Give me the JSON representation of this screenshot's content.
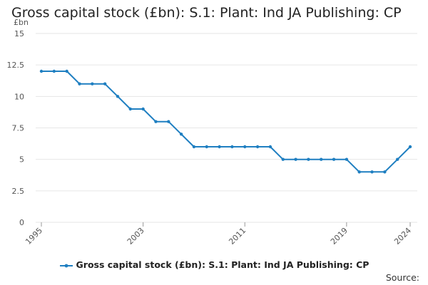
{
  "title": "Gross capital stock (£bn): S.1: Plant: Ind JA Publishing: CP",
  "source_label": "Source:",
  "colors": {
    "series": "#1f7fc1",
    "grid": "#e6e6e6",
    "axis_text": "#555555"
  },
  "chart_data": {
    "type": "line",
    "title": "Gross capital stock (£bn): S.1: Plant: Ind JA Publishing: CP",
    "ylabel": "£bn",
    "xlabel": "",
    "ylim": [
      0,
      15
    ],
    "xlim": [
      1995,
      2024
    ],
    "yticks": [
      "0",
      "2.5",
      "5",
      "7.5",
      "10",
      "12.5",
      "15"
    ],
    "xticks": [
      "1995",
      "2003",
      "2011",
      "2019",
      "2024"
    ],
    "grid": true,
    "legend_position": "bottom",
    "series": [
      {
        "name": "Gross capital stock (£bn): S.1: Plant: Ind JA Publishing: CP",
        "x": [
          1995,
          1996,
          1997,
          1998,
          1999,
          2000,
          2001,
          2002,
          2003,
          2004,
          2005,
          2006,
          2007,
          2008,
          2009,
          2010,
          2011,
          2012,
          2013,
          2014,
          2015,
          2016,
          2017,
          2018,
          2019,
          2020,
          2021,
          2022,
          2023,
          2024
        ],
        "values": [
          12,
          12,
          12,
          11,
          11,
          11,
          10,
          9,
          9,
          8,
          8,
          7,
          6,
          6,
          6,
          6,
          6,
          6,
          6,
          5,
          5,
          5,
          5,
          5,
          5,
          4,
          4,
          4,
          5,
          6
        ]
      }
    ]
  }
}
